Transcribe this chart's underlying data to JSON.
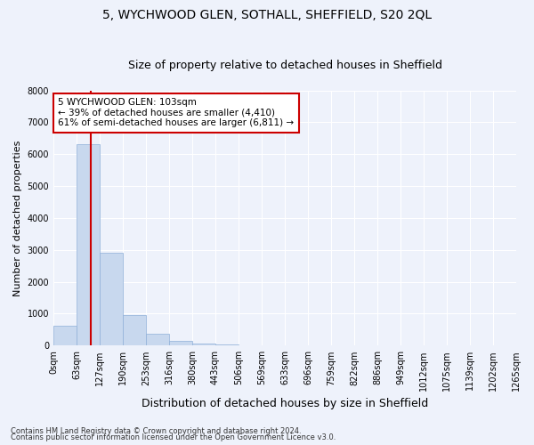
{
  "title": "5, WYCHWOOD GLEN, SOTHALL, SHEFFIELD, S20 2QL",
  "subtitle": "Size of property relative to detached houses in Sheffield",
  "xlabel": "Distribution of detached houses by size in Sheffield",
  "ylabel": "Number of detached properties",
  "footnote1": "Contains HM Land Registry data © Crown copyright and database right 2024.",
  "footnote2": "Contains public sector information licensed under the Open Government Licence v3.0.",
  "annotation_line1": "5 WYCHWOOD GLEN: 103sqm",
  "annotation_line2": "← 39% of detached houses are smaller (4,410)",
  "annotation_line3": "61% of semi-detached houses are larger (6,811) →",
  "bar_values": [
    620,
    6300,
    2900,
    950,
    370,
    150,
    75,
    30,
    10,
    5,
    2,
    1,
    0,
    0,
    0,
    0,
    0,
    0,
    0,
    0
  ],
  "bin_labels": [
    "0sqm",
    "63sqm",
    "127sqm",
    "190sqm",
    "253sqm",
    "316sqm",
    "380sqm",
    "443sqm",
    "506sqm",
    "569sqm",
    "633sqm",
    "696sqm",
    "759sqm",
    "822sqm",
    "886sqm",
    "949sqm",
    "1012sqm",
    "1075sqm",
    "1139sqm",
    "1202sqm",
    "1265sqm"
  ],
  "bar_color": "#c8d8ee",
  "bar_edge_color": "#8fb0d8",
  "ylim": [
    0,
    8000
  ],
  "yticks": [
    0,
    1000,
    2000,
    3000,
    4000,
    5000,
    6000,
    7000,
    8000
  ],
  "background_color": "#eef2fb",
  "grid_color": "#ffffff",
  "title_fontsize": 10,
  "subtitle_fontsize": 9,
  "ylabel_fontsize": 8,
  "xlabel_fontsize": 9,
  "tick_fontsize": 7,
  "annotation_fontsize": 7.5,
  "annotation_box_facecolor": "#ffffff",
  "annotation_box_edgecolor": "#cc0000",
  "red_line_color": "#cc0000",
  "footnote_fontsize": 6
}
